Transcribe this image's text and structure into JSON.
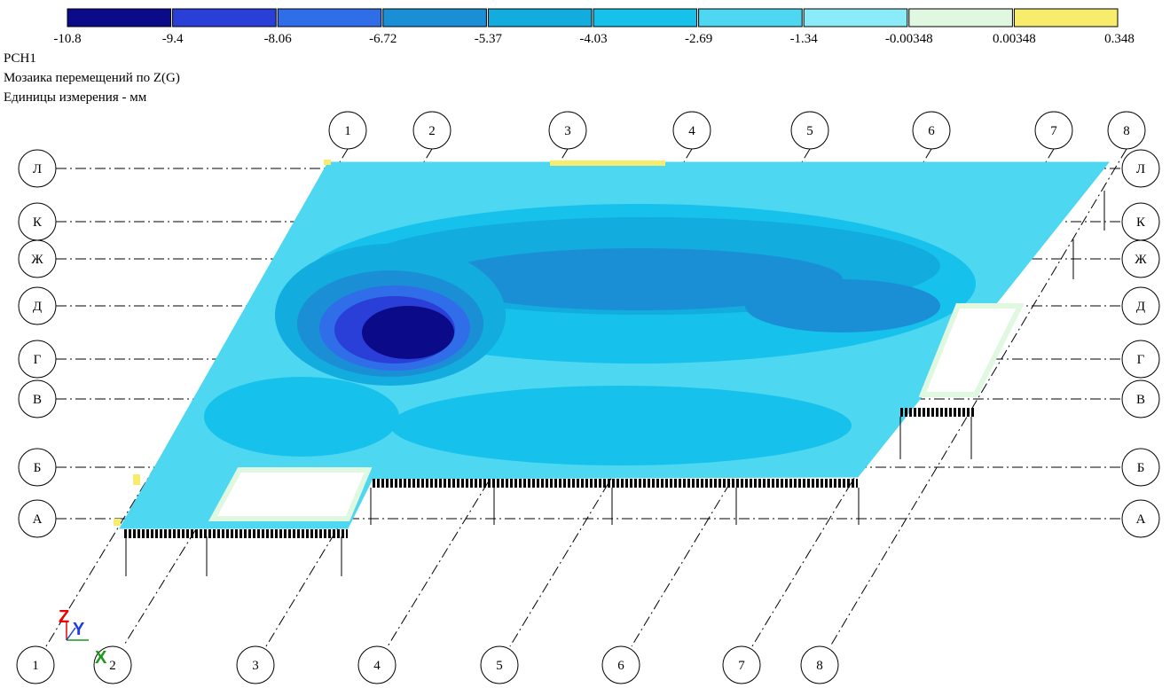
{
  "legend": {
    "colors": [
      "#0b0b8a",
      "#2a3ed8",
      "#2f6ee8",
      "#1b8fd6",
      "#12acdf",
      "#16c2ec",
      "#4dd7f1",
      "#8aebf9",
      "#e0f8df",
      "#f8ec6c"
    ],
    "labels": [
      "-10.8",
      "-9.4",
      "-8.06",
      "-6.72",
      "-5.37",
      "-4.03",
      "-2.69",
      "-1.34",
      "-0.00348",
      "0.00348",
      "0.348"
    ]
  },
  "header": {
    "case": "РСН1",
    "title": "Мозаика перемещений по Z(G)",
    "units": "Единицы измерения - мм"
  },
  "grid": {
    "rows_left": [
      "Л",
      "К",
      "Ж",
      "Д",
      "Г",
      "В",
      "Б",
      "А"
    ],
    "rows_right": [
      "Л",
      "К",
      "Ж",
      "Д",
      "Г",
      "В",
      "Б",
      "А"
    ],
    "columns_top": [
      "1",
      "2",
      "3",
      "4",
      "5",
      "6",
      "7",
      "8"
    ],
    "columns_bottom": [
      "1",
      "2",
      "3",
      "4",
      "5",
      "6",
      "7",
      "8"
    ]
  },
  "triad": {
    "z": "Z",
    "y": "Y",
    "x": "X"
  }
}
